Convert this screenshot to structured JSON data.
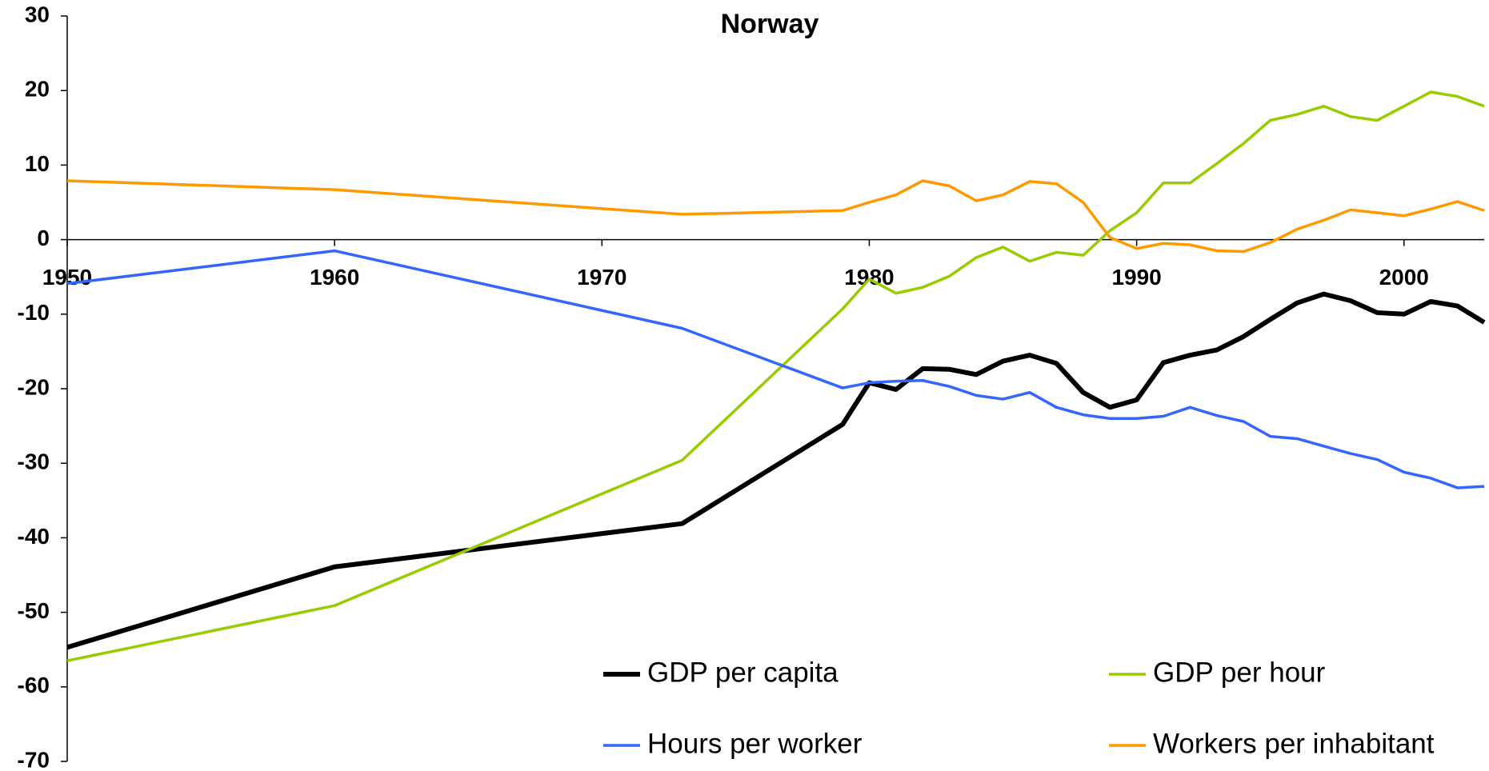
{
  "chart_data": {
    "type": "line",
    "title": "Norway",
    "x": [
      1950,
      1960,
      1973,
      1979,
      1980,
      1981,
      1982,
      1983,
      1984,
      1985,
      1986,
      1987,
      1988,
      1989,
      1990,
      1991,
      1992,
      1993,
      1994,
      1995,
      1996,
      1997,
      1998,
      1999,
      2000,
      2001,
      2002,
      2003
    ],
    "series": [
      {
        "name": "GDP per capita",
        "color": "#000000",
        "values": [
          -54.7,
          -43.9,
          -38.1,
          -24.8,
          -19.2,
          -20.1,
          -17.3,
          -17.4,
          -18.1,
          -16.3,
          -15.5,
          -16.6,
          -20.5,
          -22.5,
          -21.5,
          -16.5,
          -15.5,
          -14.8,
          -13.0,
          -10.7,
          -8.5,
          -7.3,
          -8.2,
          -9.8,
          -10.0,
          -8.3,
          -8.9,
          -11.1
        ]
      },
      {
        "name": "GDP per hour",
        "color": "#99cc00",
        "values": [
          -56.5,
          -49.1,
          -29.6,
          -9.3,
          -5.3,
          -7.2,
          -6.4,
          -4.9,
          -2.4,
          -1.0,
          -2.9,
          -1.7,
          -2.1,
          1.2,
          3.6,
          7.6,
          7.6,
          10.2,
          12.9,
          16.0,
          16.8,
          17.9,
          16.5,
          16.0,
          17.9,
          19.8,
          19.2,
          17.9
        ]
      },
      {
        "name": "Hours per worker",
        "color": "#3366ff",
        "values": [
          -5.9,
          -1.5,
          -11.9,
          -19.9,
          -19.2,
          -19.0,
          -18.9,
          -19.7,
          -20.9,
          -21.4,
          -20.5,
          -22.5,
          -23.5,
          -24.0,
          -24.0,
          -23.7,
          -22.5,
          -23.6,
          -24.4,
          -26.4,
          -26.7,
          -27.7,
          -28.7,
          -29.5,
          -31.2,
          -32.0,
          -33.3,
          -33.1
        ]
      },
      {
        "name": "Workers per inhabitant",
        "color": "#ff9900",
        "values": [
          7.9,
          6.7,
          3.4,
          3.9,
          5.0,
          6.0,
          7.9,
          7.2,
          5.2,
          6.0,
          7.8,
          7.5,
          5.0,
          0.3,
          -1.2,
          -0.5,
          -0.7,
          -1.5,
          -1.6,
          -0.4,
          1.4,
          2.6,
          4.0,
          3.6,
          3.2,
          4.1,
          5.1,
          3.9
        ]
      }
    ],
    "xlim": [
      1950,
      2003
    ],
    "xticks": [
      1950,
      1960,
      1970,
      1980,
      1990,
      2000
    ],
    "ylim": [
      -70,
      30
    ],
    "yticks": [
      -70,
      -60,
      -50,
      -40,
      -30,
      -20,
      -10,
      0,
      10,
      20,
      30
    ],
    "grid": false
  }
}
